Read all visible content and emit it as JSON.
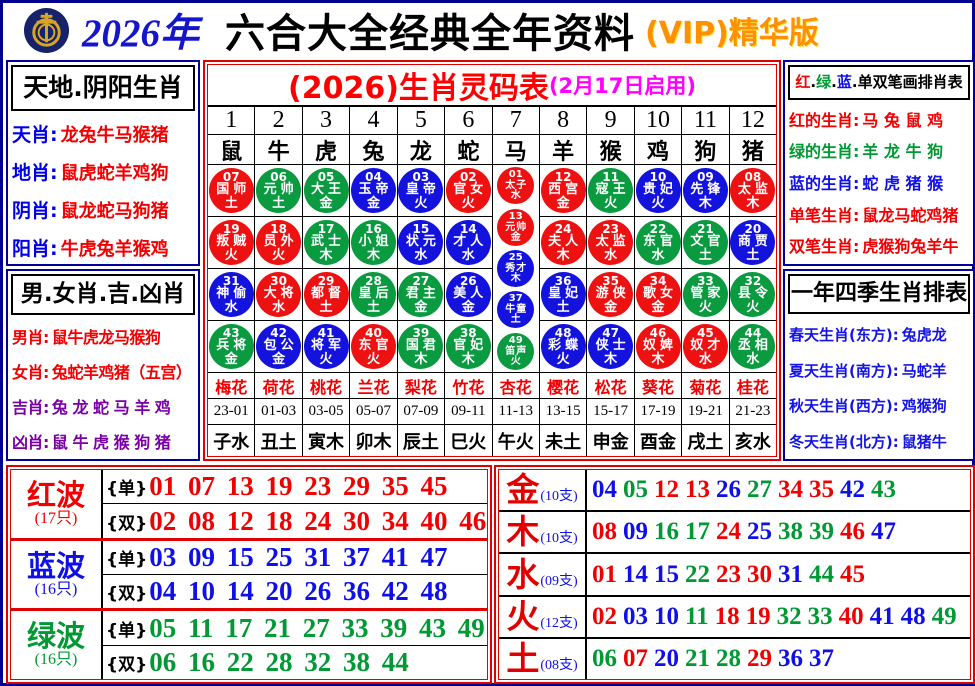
{
  "header": {
    "year": "2026年",
    "title": "六合大全经典全年资料",
    "vip": "(VIP)精华版",
    "logo": "jockey-club-emblem"
  },
  "left_top": {
    "title": "天地.阴阳生肖",
    "rows": [
      {
        "label": "天肖:",
        "value": "龙兔牛马猴猪"
      },
      {
        "label": "地肖:",
        "value": "鼠虎蛇羊鸡狗"
      },
      {
        "label": "阴肖:",
        "value": "鼠龙蛇马狗猪"
      },
      {
        "label": "阳肖:",
        "value": "牛虎兔羊猴鸡"
      }
    ]
  },
  "left_bottom": {
    "title": "男.女肖.吉.凶肖",
    "rows": [
      {
        "label": "男肖:",
        "value": "鼠牛虎龙马猴狗",
        "color": "red"
      },
      {
        "label": "女肖:",
        "value": "兔蛇羊鸡猪（五宫）",
        "color": "red"
      },
      {
        "label": "吉肖:",
        "value": "兔 龙 蛇 马 羊 鸡",
        "color": "purple"
      },
      {
        "label": "凶肖:",
        "value": "鼠 牛 虎 猴 狗 猪",
        "color": "purple"
      }
    ]
  },
  "right_top": {
    "title_parts": [
      {
        "text": "红",
        "color": "red"
      },
      {
        "text": ".",
        "color": "black"
      },
      {
        "text": "绿",
        "color": "green"
      },
      {
        "text": ".",
        "color": "black"
      },
      {
        "text": "蓝",
        "color": "blue"
      },
      {
        "text": ".",
        "color": "black"
      },
      {
        "text": "单双笔画排肖表",
        "color": "black"
      }
    ],
    "rows": [
      {
        "label": "红的生肖:",
        "value": "马 兔 鼠 鸡",
        "color": "red"
      },
      {
        "label": "绿的生肖:",
        "value": "羊 龙 牛 狗",
        "color": "green"
      },
      {
        "label": "蓝的生肖:",
        "value": "蛇 虎 猪 猴",
        "color": "blue"
      },
      {
        "label": "单笔生肖:",
        "value": "鼠龙马蛇鸡猪",
        "color": "red"
      },
      {
        "label": "双笔生肖:",
        "value": "虎猴狗兔羊牛",
        "color": "red"
      }
    ]
  },
  "right_bottom": {
    "title": "一年四季生肖排表",
    "rows": [
      {
        "label": "春天生肖(东方):",
        "value": "兔虎龙"
      },
      {
        "label": "夏天生肖(南方):",
        "value": "马蛇羊"
      },
      {
        "label": "秋天生肖(西方):",
        "value": "鸡猴狗"
      },
      {
        "label": "冬天生肖(北方):",
        "value": "鼠猪牛"
      }
    ]
  },
  "main_table": {
    "title_red": "(2026)生肖灵码表",
    "title_magenta": "(2月17日启用)",
    "columns": [
      {
        "num": "1",
        "zodiac": "鼠",
        "flower": "梅花",
        "time": "23-01",
        "branch": "子水",
        "circles": [
          {
            "n": "07",
            "name": "国师",
            "elem": "土",
            "color": "red"
          },
          {
            "n": "19",
            "name": "叛贼",
            "elem": "火",
            "color": "red"
          },
          {
            "n": "31",
            "name": "神偷",
            "elem": "水",
            "color": "blue"
          },
          {
            "n": "43",
            "name": "兵将",
            "elem": "金",
            "color": "green"
          }
        ]
      },
      {
        "num": "2",
        "zodiac": "牛",
        "flower": "荷花",
        "time": "01-03",
        "branch": "丑土",
        "circles": [
          {
            "n": "06",
            "name": "元帅",
            "elem": "土",
            "color": "green"
          },
          {
            "n": "18",
            "name": "员外",
            "elem": "火",
            "color": "red"
          },
          {
            "n": "30",
            "name": "大将",
            "elem": "水",
            "color": "red"
          },
          {
            "n": "42",
            "name": "包公",
            "elem": "金",
            "color": "blue"
          }
        ]
      },
      {
        "num": "3",
        "zodiac": "虎",
        "flower": "桃花",
        "time": "03-05",
        "branch": "寅木",
        "circles": [
          {
            "n": "05",
            "name": "大王",
            "elem": "金",
            "color": "green"
          },
          {
            "n": "17",
            "name": "武士",
            "elem": "木",
            "color": "green"
          },
          {
            "n": "29",
            "name": "都督",
            "elem": "土",
            "color": "red"
          },
          {
            "n": "41",
            "name": "将军",
            "elem": "火",
            "color": "blue"
          }
        ]
      },
      {
        "num": "4",
        "zodiac": "兔",
        "flower": "兰花",
        "time": "05-07",
        "branch": "卯木",
        "circles": [
          {
            "n": "04",
            "name": "玉帝",
            "elem": "金",
            "color": "blue"
          },
          {
            "n": "16",
            "name": "小姐",
            "elem": "木",
            "color": "green"
          },
          {
            "n": "28",
            "name": "皇后",
            "elem": "土",
            "color": "green"
          },
          {
            "n": "40",
            "name": "东官",
            "elem": "火",
            "color": "red"
          }
        ]
      },
      {
        "num": "5",
        "zodiac": "龙",
        "flower": "梨花",
        "time": "07-09",
        "branch": "辰土",
        "circles": [
          {
            "n": "03",
            "name": "皇帝",
            "elem": "火",
            "color": "blue"
          },
          {
            "n": "15",
            "name": "状元",
            "elem": "水",
            "color": "blue"
          },
          {
            "n": "27",
            "name": "君主",
            "elem": "金",
            "color": "green"
          },
          {
            "n": "39",
            "name": "国君",
            "elem": "木",
            "color": "green"
          }
        ]
      },
      {
        "num": "6",
        "zodiac": "蛇",
        "flower": "竹花",
        "time": "09-11",
        "branch": "巳火",
        "circles": [
          {
            "n": "02",
            "name": "官女",
            "elem": "火",
            "color": "red"
          },
          {
            "n": "14",
            "name": "才人",
            "elem": "水",
            "color": "blue"
          },
          {
            "n": "26",
            "name": "美人",
            "elem": "金",
            "color": "blue"
          },
          {
            "n": "38",
            "name": "官妃",
            "elem": "木",
            "color": "green"
          }
        ]
      },
      {
        "num": "7",
        "zodiac": "马",
        "flower": "杏花",
        "time": "11-13",
        "branch": "午火",
        "small": true,
        "circles": [
          {
            "n": "01",
            "name": "太子",
            "elem": "水",
            "color": "red"
          },
          {
            "n": "13",
            "name": "元帅",
            "elem": "金",
            "color": "red"
          },
          {
            "n": "25",
            "name": "秀才",
            "elem": "木",
            "color": "blue"
          },
          {
            "n": "37",
            "name": "牛童",
            "elem": "土",
            "color": "blue"
          },
          {
            "n": "49",
            "name": "笛声",
            "elem": "火",
            "color": "green"
          }
        ]
      },
      {
        "num": "8",
        "zodiac": "羊",
        "flower": "樱花",
        "time": "13-15",
        "branch": "未土",
        "circles": [
          {
            "n": "12",
            "name": "西宫",
            "elem": "金",
            "color": "red"
          },
          {
            "n": "24",
            "name": "夫人",
            "elem": "木",
            "color": "red"
          },
          {
            "n": "36",
            "name": "皇妃",
            "elem": "土",
            "color": "blue"
          },
          {
            "n": "48",
            "name": "彩蝶",
            "elem": "火",
            "color": "blue"
          }
        ]
      },
      {
        "num": "9",
        "zodiac": "猴",
        "flower": "松花",
        "time": "15-17",
        "branch": "申金",
        "circles": [
          {
            "n": "11",
            "name": "寇王",
            "elem": "火",
            "color": "green"
          },
          {
            "n": "23",
            "name": "太监",
            "elem": "水",
            "color": "red"
          },
          {
            "n": "35",
            "name": "游侠",
            "elem": "金",
            "color": "red"
          },
          {
            "n": "47",
            "name": "侠士",
            "elem": "木",
            "color": "blue"
          }
        ]
      },
      {
        "num": "10",
        "zodiac": "鸡",
        "flower": "葵花",
        "time": "17-19",
        "branch": "酉金",
        "circles": [
          {
            "n": "10",
            "name": "贵妃",
            "elem": "火",
            "color": "blue"
          },
          {
            "n": "22",
            "name": "东官",
            "elem": "水",
            "color": "green"
          },
          {
            "n": "34",
            "name": "歌女",
            "elem": "金",
            "color": "red"
          },
          {
            "n": "46",
            "name": "奴婢",
            "elem": "木",
            "color": "red"
          }
        ]
      },
      {
        "num": "11",
        "zodiac": "狗",
        "flower": "菊花",
        "time": "19-21",
        "branch": "戌土",
        "circles": [
          {
            "n": "09",
            "name": "先锋",
            "elem": "木",
            "color": "blue"
          },
          {
            "n": "21",
            "name": "文官",
            "elem": "土",
            "color": "green"
          },
          {
            "n": "33",
            "name": "管家",
            "elem": "火",
            "color": "green"
          },
          {
            "n": "45",
            "name": "奴才",
            "elem": "水",
            "color": "red"
          }
        ]
      },
      {
        "num": "12",
        "zodiac": "猪",
        "flower": "桂花",
        "time": "21-23",
        "branch": "亥水",
        "circles": [
          {
            "n": "08",
            "name": "太监",
            "elem": "木",
            "color": "red"
          },
          {
            "n": "20",
            "name": "商贾",
            "elem": "土",
            "color": "blue"
          },
          {
            "n": "32",
            "name": "县令",
            "elem": "火",
            "color": "green"
          },
          {
            "n": "44",
            "name": "丞相",
            "elem": "水",
            "color": "green"
          }
        ]
      }
    ]
  },
  "odd_even_labels": {
    "odd": "{单}",
    "even": "{双}"
  },
  "waves": [
    {
      "name": "红波",
      "count": "(17只)",
      "color": "red",
      "odd": "01 07 13 19 23 29 35 45",
      "even": "02 08 12 18 24 30 34 40 46"
    },
    {
      "name": "蓝波",
      "count": "(16只)",
      "color": "blue",
      "odd": "03 09 15 25 31 37 41 47",
      "even": "04 10 14 20 26 36 42 48"
    },
    {
      "name": "绿波",
      "count": "(16只)",
      "color": "green",
      "odd": "05 11 17 21 27 33 39 43 49",
      "even": "06 16 22 28 32 38 44"
    }
  ],
  "elements": [
    {
      "name": "金",
      "count": "(10支)",
      "numbers": [
        "04",
        "05",
        "12",
        "13",
        "26",
        "27",
        "34",
        "35",
        "42",
        "43"
      ]
    },
    {
      "name": "木",
      "count": "(10支)",
      "numbers": [
        "08",
        "09",
        "16",
        "17",
        "24",
        "25",
        "38",
        "39",
        "46",
        "47"
      ]
    },
    {
      "name": "水",
      "count": "(09支)",
      "numbers": [
        "01",
        "14",
        "15",
        "22",
        "23",
        "30",
        "31",
        "44",
        "45"
      ]
    },
    {
      "name": "火",
      "count": "(12支)",
      "numbers": [
        "02",
        "03",
        "10",
        "11",
        "18",
        "19",
        "32",
        "33",
        "40",
        "41",
        "48",
        "49"
      ]
    },
    {
      "name": "土",
      "count": "(08支)",
      "numbers": [
        "06",
        "07",
        "20",
        "21",
        "28",
        "29",
        "36",
        "37"
      ]
    }
  ],
  "number_colors": {
    "red": [
      "01",
      "02",
      "07",
      "08",
      "12",
      "13",
      "18",
      "19",
      "23",
      "24",
      "29",
      "30",
      "34",
      "35",
      "40",
      "45",
      "46"
    ],
    "blue": [
      "03",
      "04",
      "09",
      "10",
      "14",
      "15",
      "20",
      "25",
      "26",
      "31",
      "36",
      "37",
      "41",
      "42",
      "47",
      "48"
    ],
    "green": [
      "05",
      "06",
      "11",
      "16",
      "17",
      "21",
      "22",
      "27",
      "28",
      "32",
      "33",
      "38",
      "39",
      "43",
      "44",
      "49"
    ]
  },
  "palette": {
    "red": "#ff0000",
    "blue": "#0f0fe8",
    "green": "#009933",
    "magenta": "#ff00ff",
    "navy": "#000090"
  }
}
